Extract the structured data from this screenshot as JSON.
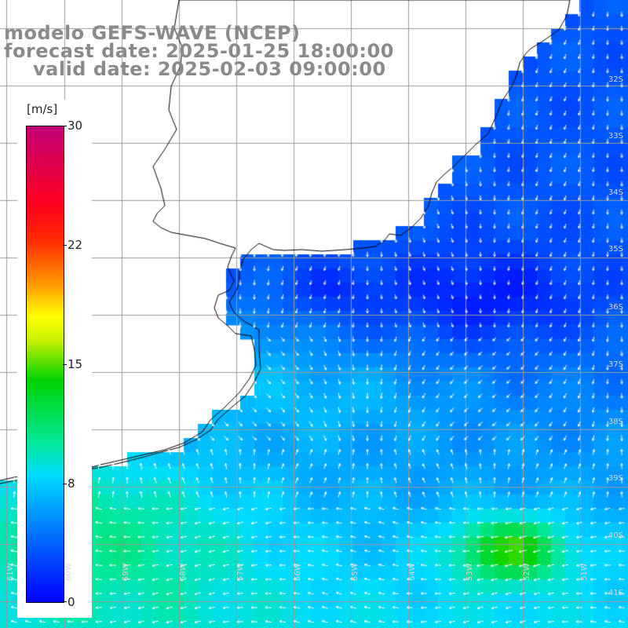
{
  "title": {
    "line1": "modelo GEFS-WAVE (NCEP)",
    "line2": "forecast date: 2025-01-25 18:00:00",
    "line3": "valid date: 2025-02-03 09:00:00"
  },
  "colorbar": {
    "unit": "[m/s]",
    "ticks": [
      "30",
      "22",
      "15",
      "8",
      "0"
    ],
    "tick_values": [
      30,
      22,
      15,
      8,
      0
    ],
    "min": 0,
    "max": 30
  },
  "lat_labels": [
    "32S",
    "33S",
    "34S",
    "35S",
    "36S",
    "37S",
    "38S",
    "39S",
    "40S",
    "41S"
  ],
  "lon_labels": [
    "61W",
    "60W",
    "59W",
    "58W",
    "57W",
    "56W",
    "55W",
    "54W",
    "53W",
    "52W",
    "51W"
  ],
  "colors": {
    "land": "#ffffff",
    "grid": "#9a9a9a",
    "coast": "#000000",
    "arrow": "#ffffff",
    "title": "#8a8a8a"
  },
  "field_description_levels_ms": {
    "north_open_ocean": 4,
    "rio_de_la_plata": 5,
    "south_shelf": 8,
    "southeast_maximum": 14
  }
}
